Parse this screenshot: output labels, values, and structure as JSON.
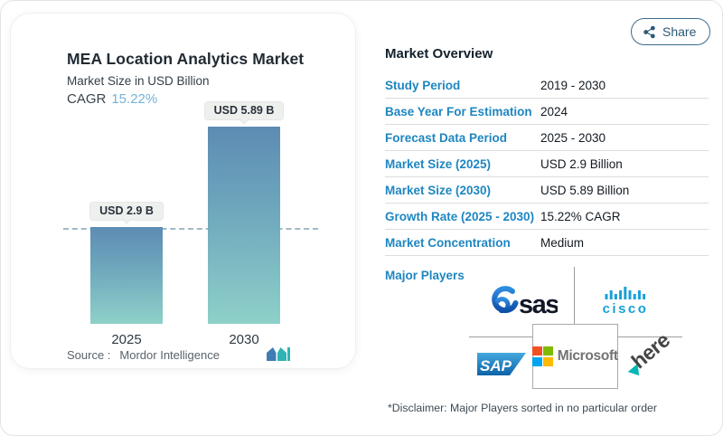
{
  "header": {
    "share_label": "Share"
  },
  "chart_card": {
    "title": "MEA Location Analytics Market",
    "subtitle": "Market Size in USD Billion",
    "cagr_label": "CAGR",
    "cagr_value": "15.22%",
    "source_label": "Source :",
    "source_value": "Mordor Intelligence"
  },
  "chart_data": {
    "type": "bar",
    "categories": [
      "2025",
      "2030"
    ],
    "values": [
      2.9,
      5.89
    ],
    "bar_labels": [
      "USD 2.9 B",
      "USD 5.89 B"
    ],
    "title": "MEA Location Analytics Market",
    "ylabel": "Market Size in USD Billion",
    "unit": "USD Billion",
    "cagr_percent": 15.22,
    "reference_line_value": 2.9,
    "ylim": [
      0,
      6.5
    ],
    "grid": false,
    "colors": {
      "bar_gradient_top": "#5d8cb3",
      "bar_gradient_bottom": "#8ed0c9",
      "reference_line": "#a3b8c6"
    }
  },
  "overview": {
    "title": "Market Overview",
    "rows": [
      {
        "label": "Study Period",
        "value": "2019 - 2030"
      },
      {
        "label": "Base Year For Estimation",
        "value": "2024"
      },
      {
        "label": "Forecast Data Period",
        "value": "2025 - 2030"
      },
      {
        "label": "Market Size (2025)",
        "value": "USD 2.9 Billion"
      },
      {
        "label": "Market Size (2030)",
        "value": "USD 5.89 Billion"
      },
      {
        "label": "Growth Rate (2025 - 2030)",
        "value": "15.22% CAGR"
      },
      {
        "label": "Market Concentration",
        "value": "Medium"
      }
    ],
    "major_players_label": "Major Players",
    "players": {
      "sas": "sas",
      "cisco": "cisco",
      "sap": "SAP",
      "microsoft": "Microsoft",
      "here": "here"
    },
    "disclaimer": "*Disclaimer: Major Players sorted in no particular order"
  },
  "brand_colors": {
    "accent_blue": "#1e86c1",
    "cisco_blue": "#18a0d8",
    "sas_navy": "#101726",
    "sap_blue": "#0d62a7",
    "here_teal": "#00b7b4",
    "ms_red": "#f25022",
    "ms_green": "#7fba00",
    "ms_blue": "#00a4ef",
    "ms_yellow": "#ffb900",
    "ms_gray": "#737373"
  }
}
